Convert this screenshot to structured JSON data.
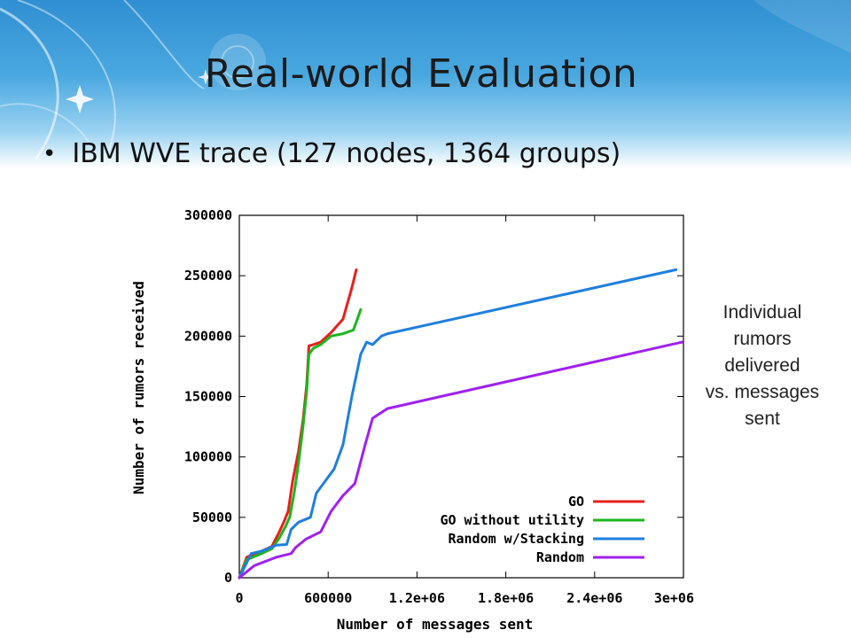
{
  "slide": {
    "title": "Real-world Evaluation",
    "bullet": "IBM WVE trace (127 nodes, 1364 groups)",
    "note_lines": [
      "Individual",
      "rumors",
      "delivered",
      "vs. messages",
      "sent"
    ]
  },
  "chart_data": {
    "type": "line",
    "xlabel": "Number of messages sent",
    "ylabel": "Number of rumors received",
    "xlim": [
      0,
      3000000
    ],
    "ylim": [
      0,
      300000
    ],
    "x_tick_labels": [
      "0",
      "600000",
      "1.2e+06",
      "1.8e+06",
      "2.4e+06",
      "3e+06"
    ],
    "x_tick_values": [
      0,
      600000,
      1200000,
      1800000,
      2400000,
      3000000
    ],
    "y_tick_labels": [
      "0",
      "50000",
      "100000",
      "150000",
      "200000",
      "250000",
      "300000"
    ],
    "y_tick_values": [
      0,
      50000,
      100000,
      150000,
      200000,
      250000,
      300000
    ],
    "legend_position": "bottom-right",
    "series": [
      {
        "name": "GO",
        "color": "#e8201c",
        "x": [
          0,
          50000,
          150000,
          220000,
          270000,
          300000,
          330000,
          360000,
          400000,
          430000,
          455000,
          470000,
          500000,
          550000,
          620000,
          700000,
          760000,
          790000
        ],
        "y": [
          0,
          17000,
          22000,
          26000,
          38000,
          46000,
          55000,
          80000,
          105000,
          130000,
          160000,
          192000,
          193000,
          195000,
          203000,
          214000,
          240000,
          255000
        ]
      },
      {
        "name": "GO without utility",
        "color": "#1db51d",
        "x": [
          0,
          50000,
          150000,
          220000,
          270000,
          310000,
          340000,
          370000,
          400000,
          430000,
          455000,
          470000,
          500000,
          550000,
          620000,
          700000,
          770000,
          800000,
          820000
        ],
        "y": [
          0,
          15000,
          20000,
          24000,
          33000,
          42000,
          50000,
          70000,
          95000,
          125000,
          155000,
          185000,
          190000,
          193000,
          200000,
          202000,
          205000,
          215000,
          222000
        ]
      },
      {
        "name": "Random w/Stacking",
        "color": "#1e7fe0",
        "x": [
          0,
          80000,
          150000,
          250000,
          320000,
          350000,
          400000,
          480000,
          520000,
          580000,
          640000,
          700000,
          760000,
          820000,
          860000,
          900000,
          960000,
          1000000,
          2950000
        ],
        "y": [
          0,
          20000,
          22000,
          27000,
          27500,
          40000,
          46000,
          50000,
          70000,
          80000,
          90000,
          110000,
          150000,
          185000,
          195000,
          193000,
          200000,
          202000,
          255000
        ]
      },
      {
        "name": "Random",
        "color": "#a020ef",
        "x": [
          0,
          100000,
          250000,
          350000,
          380000,
          450000,
          550000,
          620000,
          700000,
          780000,
          850000,
          900000,
          1000000,
          2990000
        ],
        "y": [
          0,
          10000,
          17000,
          20000,
          25000,
          32000,
          38000,
          55000,
          68000,
          78000,
          110000,
          132000,
          140000,
          195000
        ]
      }
    ]
  }
}
